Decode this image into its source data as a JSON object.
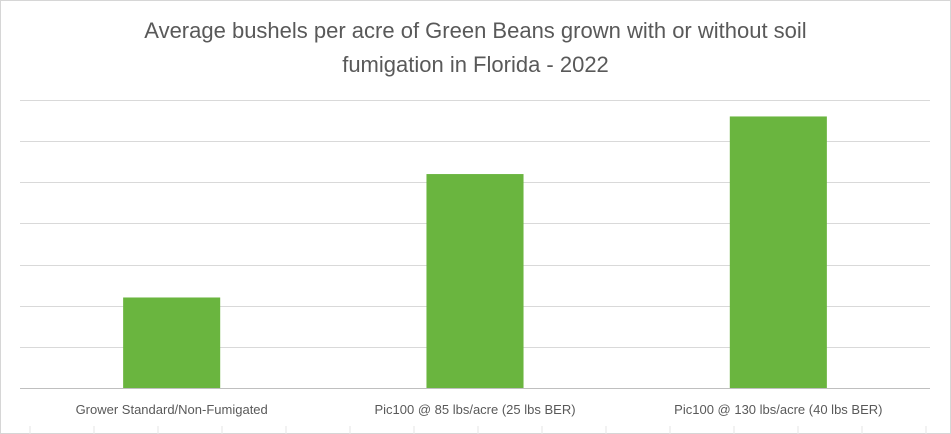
{
  "chart_data": {
    "type": "bar",
    "title_lines": [
      "Average bushels per acre of Green Beans grown with or without soil",
      "fumigation in Florida - 2022"
    ],
    "categories": [
      "Grower Standard/Non-Fumigated",
      "Pic100 @ 85 lbs/acre (25 lbs BER)",
      "Pic100 @ 130 lbs/acre (40 lbs BER)"
    ],
    "values": [
      22,
      52,
      66
    ],
    "ylim": [
      0,
      70
    ],
    "y_major_step": 10,
    "y_tick_labels_shown": false,
    "grid": true,
    "legend": "none",
    "bar_color": "#6ab53f"
  }
}
